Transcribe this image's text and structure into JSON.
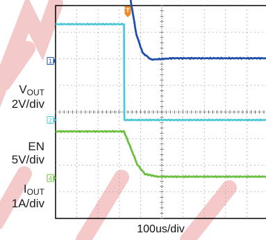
{
  "chart_data": {
    "type": "line",
    "time_scale": "100us/div",
    "divisions_x": 10,
    "divisions_y": 8,
    "trigger_marker": "T",
    "series": [
      {
        "name": "VOUT",
        "name_main": "V",
        "name_sub": "OUT",
        "scale": "2V/div",
        "channel": "1",
        "color": "#1f4fa8",
        "offset_div": 2.08,
        "points": [
          [
            0,
            4.8
          ],
          [
            3.22,
            4.8
          ],
          [
            3.35,
            3.8
          ],
          [
            3.55,
            2.2
          ],
          [
            3.8,
            1.0
          ],
          [
            4.1,
            0.3
          ],
          [
            4.5,
            0.05
          ],
          [
            5.5,
            0.1
          ],
          [
            10,
            0.1
          ]
        ]
      },
      {
        "name": "EN",
        "name_main": "EN",
        "name_sub": "",
        "scale": "5V/div",
        "channel": "2",
        "color": "#4fc8d8",
        "offset_div": 4.3,
        "points": [
          [
            0,
            3.6
          ],
          [
            3.22,
            3.6
          ],
          [
            3.24,
            0.0
          ],
          [
            10,
            0.0
          ]
        ]
      },
      {
        "name": "IOUT",
        "name_main": "I",
        "name_sub": "OUT",
        "scale": "1A/div",
        "channel": "4",
        "color": "#6cc040",
        "offset_div": 6.48,
        "points": [
          [
            0,
            1.75
          ],
          [
            3.22,
            1.75
          ],
          [
            3.5,
            1.2
          ],
          [
            3.85,
            0.5
          ],
          [
            4.2,
            0.15
          ],
          [
            4.8,
            0.05
          ],
          [
            10,
            0.05
          ]
        ]
      }
    ]
  }
}
